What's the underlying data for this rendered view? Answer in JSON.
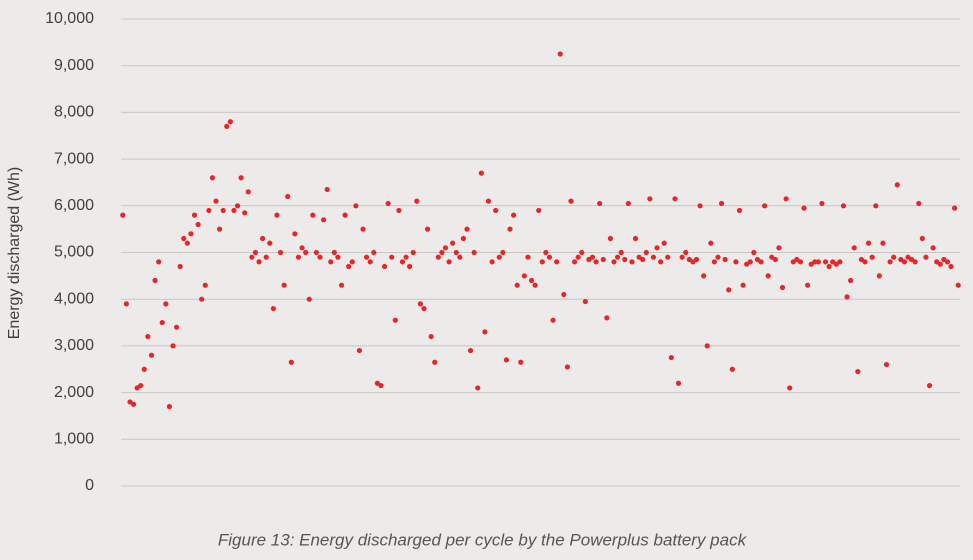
{
  "chart_data": {
    "type": "scatter",
    "y_label": "Energy discharged (Wh)",
    "caption": "Figure 13: Energy discharged per cycle by the Powerplus battery pack",
    "color": "#e8262a",
    "grid": true,
    "ylim": [
      0,
      10000
    ],
    "yticks": [
      0,
      {
        "value": 1000,
        "label": "1,000"
      },
      {
        "value": 2000,
        "label": "2,000"
      },
      {
        "value": 3000,
        "label": "3,000"
      },
      {
        "value": 4000,
        "label": "4,000"
      },
      {
        "value": 5000,
        "label": "5,000"
      },
      {
        "value": 6000,
        "label": "6,000"
      },
      {
        "value": 7000,
        "label": "7,000"
      },
      {
        "value": 8000,
        "label": "8,000"
      },
      {
        "value": 9000,
        "label": "9,000"
      },
      {
        "value": 10000,
        "label": "10,000"
      }
    ],
    "values": [
      5800,
      3900,
      1800,
      1750,
      2100,
      2150,
      2500,
      3200,
      2800,
      4400,
      4800,
      3500,
      3900,
      1700,
      3000,
      3400,
      4700,
      5300,
      5200,
      5400,
      5800,
      5600,
      4000,
      4300,
      5900,
      6600,
      6100,
      5500,
      5900,
      7700,
      7800,
      5900,
      6000,
      6600,
      5850,
      6300,
      4900,
      5000,
      4800,
      5300,
      4900,
      5200,
      3800,
      5800,
      5000,
      4300,
      6200,
      2650,
      5400,
      4900,
      5100,
      5000,
      4000,
      5800,
      5000,
      4900,
      5700,
      6350,
      4800,
      5000,
      4900,
      4300,
      5800,
      4700,
      4800,
      6000,
      2900,
      5500,
      4900,
      4800,
      5000,
      2200,
      2150,
      4700,
      6050,
      4900,
      3550,
      5900,
      4800,
      4900,
      4700,
      5000,
      6100,
      3900,
      3800,
      5500,
      3200,
      2650,
      4900,
      5000,
      5100,
      4800,
      5200,
      5000,
      4900,
      5300,
      5500,
      2900,
      5000,
      2100,
      6700,
      3300,
      6100,
      4800,
      5900,
      4900,
      5000,
      2700,
      5500,
      5800,
      4300,
      2650,
      4500,
      4900,
      4400,
      4300,
      5900,
      4800,
      5000,
      4900,
      3550,
      4800,
      9250,
      4100,
      2550,
      6100,
      4800,
      4900,
      5000,
      3950,
      4850,
      4900,
      4800,
      6050,
      4850,
      3600,
      5300,
      4800,
      4900,
      5000,
      4850,
      6050,
      4800,
      5300,
      4900,
      4850,
      5000,
      6150,
      4900,
      5100,
      4800,
      5200,
      4900,
      2750,
      6150,
      2200,
      4900,
      5000,
      4850,
      4800,
      4850,
      6000,
      4500,
      3000,
      5200,
      4800,
      4900,
      6050,
      4850,
      4200,
      2500,
      4800,
      5900,
      4300,
      4750,
      4800,
      5000,
      4850,
      4800,
      6000,
      4500,
      4900,
      4850,
      5100,
      4250,
      6150,
      2100,
      4800,
      4850,
      4800,
      5950,
      4300,
      4750,
      4800,
      4800,
      6050,
      4800,
      4700,
      4800,
      4750,
      4800,
      6000,
      4050,
      4400,
      5100,
      2450,
      4850,
      4800,
      5200,
      4900,
      6000,
      4500,
      5200,
      2600,
      4800,
      4900,
      6450,
      4850,
      4800,
      4900,
      4850,
      4800,
      6050,
      5300,
      4900,
      2150,
      5100,
      4800,
      4750,
      4850,
      4800,
      4700,
      5950,
      4300
    ]
  }
}
